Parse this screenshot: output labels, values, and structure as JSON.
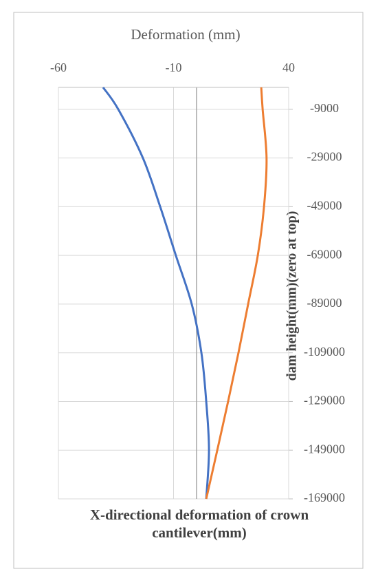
{
  "chart_data": {
    "type": "line",
    "orientation": "vertical",
    "title": "X-directional deformation of crown cantilever(mm)",
    "x_label": "Deformation (mm)",
    "y_label": "dam height(mm)(zero at top)",
    "y": [
      0,
      -9000,
      -29000,
      -49000,
      -69000,
      -89000,
      -109000,
      -129000,
      -149000,
      -169000
    ],
    "series": [
      {
        "color": "#4472c4",
        "values": [
          -40.6,
          -34,
          -23.3,
          -15.8,
          -9,
          -2.1,
          2.1,
          4.2,
          5.4,
          4.2
        ]
      },
      {
        "color": "#ed7d31",
        "values": [
          28.1,
          28.7,
          30.4,
          29.3,
          26.6,
          22.4,
          18.2,
          13.7,
          9,
          4.2
        ]
      }
    ],
    "xlim": [
      -60,
      40
    ],
    "xticks": [
      -60,
      -10,
      40
    ],
    "ylim": [
      0,
      -169000
    ],
    "yticks": [
      -9000,
      -29000,
      -49000,
      -69000,
      -89000,
      -109000,
      -129000,
      -149000,
      -169000
    ],
    "grid": true
  }
}
